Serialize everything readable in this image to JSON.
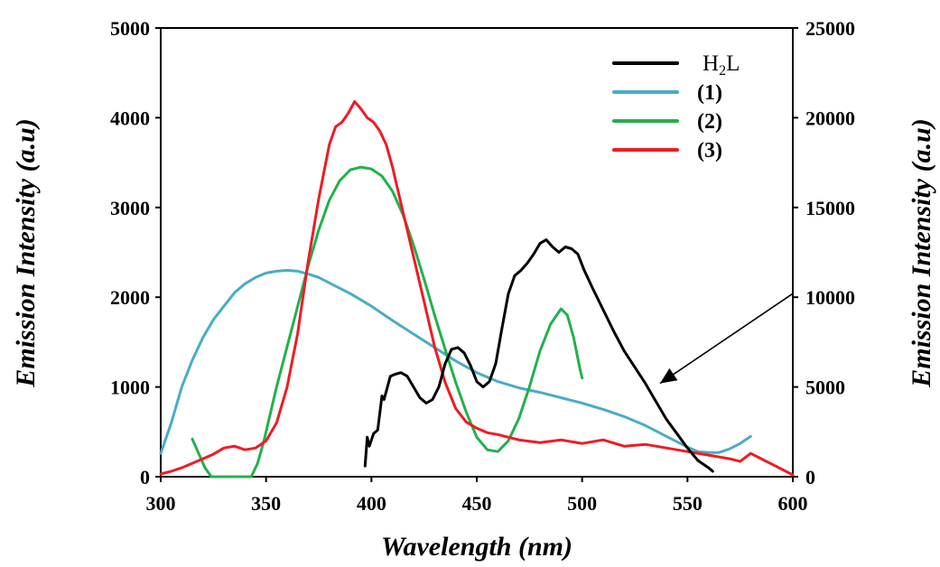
{
  "chart_data": {
    "type": "line",
    "xlabel": "Wavelength (nm)",
    "ylabel_left": "Emission Intensity (a.u)",
    "ylabel_right": "Emission Intensity (a.u)",
    "xlim": [
      300,
      600
    ],
    "ylim_left": [
      0,
      5000
    ],
    "ylim_right": [
      0,
      25000
    ],
    "x_ticks": [
      "300",
      "350",
      "400",
      "450",
      "500",
      "550",
      "600"
    ],
    "y_ticks_left": [
      "0",
      "1000",
      "2000",
      "3000",
      "4000",
      "5000"
    ],
    "y_ticks_right": [
      "0",
      "5000",
      "10000",
      "15000",
      "20000",
      "25000"
    ],
    "grid": false,
    "legend_position": "top-right",
    "arrow_annotation": {
      "from": [
        600,
        10200
      ],
      "to": [
        537,
        5200
      ],
      "axis": "right"
    },
    "series": [
      {
        "name": "H2L",
        "legend_main": "H",
        "legend_sub": "2",
        "legend_tail": "L",
        "color": "#000000",
        "axis": "right",
        "x": [
          397,
          398,
          399,
          401,
          403,
          405,
          406,
          409,
          411,
          414,
          417,
          420,
          423,
          426,
          429,
          432,
          435,
          438,
          441,
          444,
          447,
          450,
          453,
          456,
          459,
          462,
          465,
          468,
          471,
          474,
          477,
          480,
          483,
          486,
          489,
          492,
          495,
          498,
          501,
          505,
          510,
          515,
          520,
          525,
          530,
          535,
          540,
          545,
          550,
          555,
          560,
          562
        ],
        "y": [
          600,
          2200,
          1700,
          2400,
          2600,
          4500,
          4300,
          5600,
          5700,
          5800,
          5600,
          5000,
          4400,
          4100,
          4300,
          5000,
          6300,
          7100,
          7200,
          6900,
          6200,
          5300,
          5000,
          5300,
          6300,
          8300,
          10200,
          11200,
          11500,
          11900,
          12400,
          13000,
          13200,
          12800,
          12500,
          12800,
          12700,
          12400,
          11500,
          10500,
          9300,
          8100,
          7000,
          6100,
          5200,
          4200,
          3200,
          2400,
          1600,
          900,
          500,
          300
        ]
      },
      {
        "name": "(1)",
        "color": "#4bacc6",
        "axis": "left",
        "x": [
          300,
          305,
          310,
          315,
          320,
          325,
          330,
          335,
          340,
          345,
          350,
          355,
          360,
          365,
          370,
          375,
          380,
          385,
          390,
          395,
          400,
          410,
          420,
          430,
          440,
          450,
          460,
          470,
          480,
          490,
          500,
          510,
          520,
          530,
          540,
          550,
          555,
          560,
          565,
          570,
          575,
          580
        ],
        "y": [
          260,
          600,
          1000,
          1300,
          1550,
          1750,
          1900,
          2050,
          2150,
          2220,
          2270,
          2290,
          2300,
          2290,
          2260,
          2220,
          2160,
          2100,
          2040,
          1970,
          1900,
          1740,
          1590,
          1440,
          1290,
          1160,
          1060,
          990,
          940,
          880,
          820,
          750,
          670,
          570,
          450,
          330,
          280,
          270,
          270,
          310,
          370,
          450
        ]
      },
      {
        "name": "(2)",
        "color": "#22b14c",
        "axis": "left",
        "x": [
          315,
          318,
          321,
          324,
          343,
          346,
          349,
          352,
          355,
          360,
          365,
          370,
          375,
          380,
          385,
          390,
          395,
          400,
          405,
          410,
          415,
          420,
          425,
          430,
          435,
          440,
          445,
          450,
          455,
          460,
          465,
          470,
          475,
          480,
          485,
          490,
          493,
          496,
          499,
          500
        ],
        "y": [
          420,
          260,
          100,
          0,
          0,
          150,
          400,
          700,
          1000,
          1450,
          1900,
          2350,
          2750,
          3080,
          3300,
          3420,
          3450,
          3430,
          3350,
          3180,
          2920,
          2580,
          2200,
          1800,
          1420,
          1050,
          720,
          440,
          300,
          280,
          400,
          650,
          1000,
          1400,
          1700,
          1870,
          1800,
          1550,
          1200,
          1100
        ]
      },
      {
        "name": "(3)",
        "color": "#ed1c24",
        "axis": "left",
        "x": [
          300,
          305,
          310,
          315,
          320,
          325,
          330,
          335,
          340,
          345,
          350,
          355,
          360,
          365,
          370,
          375,
          380,
          383,
          386,
          389,
          392,
          395,
          398,
          401,
          404,
          407,
          410,
          415,
          420,
          425,
          430,
          435,
          440,
          445,
          450,
          455,
          460,
          470,
          480,
          490,
          500,
          510,
          520,
          530,
          540,
          550,
          560,
          570,
          575,
          580,
          585,
          590,
          595,
          600
        ],
        "y": [
          30,
          60,
          100,
          150,
          200,
          250,
          320,
          340,
          300,
          320,
          400,
          600,
          1000,
          1600,
          2400,
          3100,
          3700,
          3900,
          3950,
          4050,
          4180,
          4100,
          4000,
          3950,
          3850,
          3700,
          3450,
          2950,
          2450,
          1950,
          1450,
          1050,
          760,
          610,
          540,
          490,
          470,
          410,
          380,
          410,
          370,
          410,
          340,
          360,
          320,
          280,
          240,
          200,
          170,
          260,
          200,
          140,
          80,
          20
        ]
      }
    ]
  }
}
